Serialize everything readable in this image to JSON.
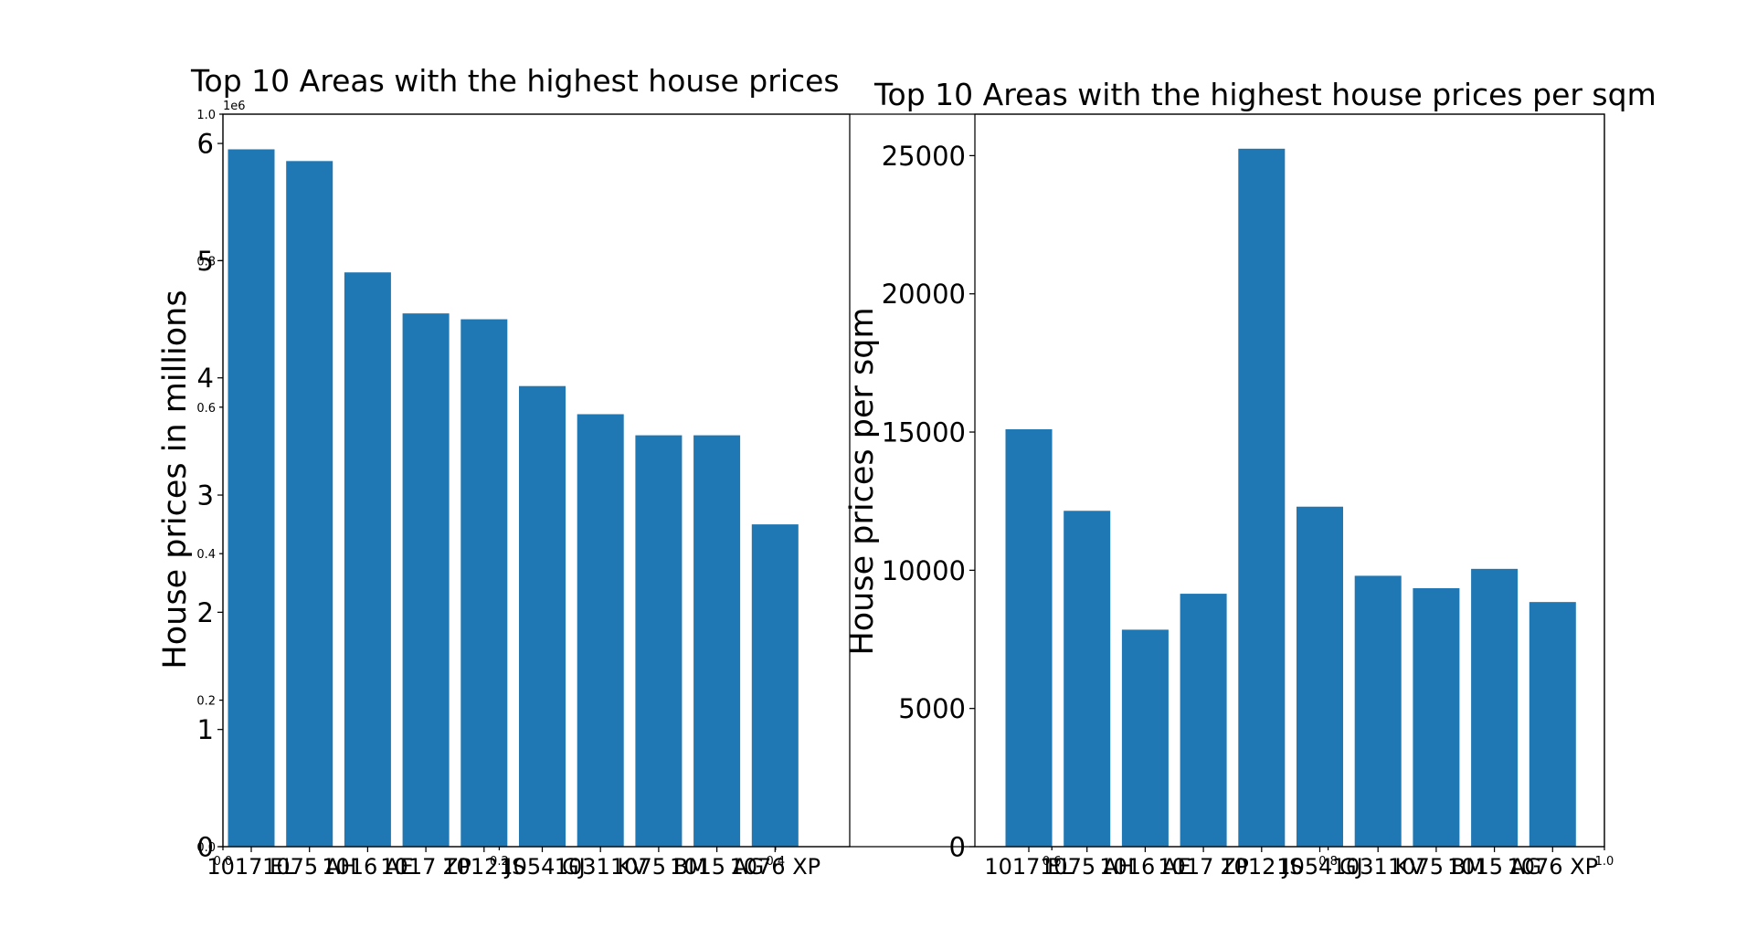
{
  "figure": {
    "background_axes": {
      "x_ticks": [
        "0.0",
        "0.2",
        "0.4",
        "0.6",
        "0.8",
        "1.0"
      ],
      "y_ticks": [
        "0.0",
        "0.2",
        "0.4",
        "0.6",
        "0.8",
        "1.0"
      ]
    }
  },
  "chart_data": [
    {
      "type": "bar",
      "title": "Top 10 Areas with the highest house prices",
      "xlabel": "",
      "ylabel": "House prices in millions",
      "offset_text": "1e6",
      "categories": [
        "1017 EL",
        "1075 AH",
        "1016 AE",
        "1017 ZP",
        "1012 JS",
        "1054 GJ",
        "1031 KV",
        "1075 BM",
        "1015 AG",
        "1076 XP"
      ],
      "values": [
        5950000,
        5850000,
        4900000,
        4550000,
        4500000,
        3930000,
        3690000,
        3510000,
        3510000,
        2750000
      ],
      "ylim": [
        0,
        6250000
      ],
      "yticks": [
        0,
        1000000,
        2000000,
        3000000,
        4000000,
        5000000,
        6000000
      ],
      "ytick_labels": [
        "0",
        "1",
        "2",
        "3",
        "4",
        "5",
        "6"
      ],
      "color": "#1f77b4",
      "grid": false
    },
    {
      "type": "bar",
      "title": "Top 10 Areas with the highest house prices per sqm",
      "xlabel": "",
      "ylabel": "House prices per sqm",
      "categories": [
        "1017 EL",
        "1075 AH",
        "1016 AE",
        "1017 ZP",
        "1012 JS",
        "1054 GJ",
        "1031 KV",
        "1075 BM",
        "1015 AG",
        "1076 XP"
      ],
      "values": [
        15100,
        12150,
        7850,
        9150,
        25250,
        12300,
        9800,
        9350,
        10050,
        8850
      ],
      "ylim": [
        0,
        26500
      ],
      "yticks": [
        0,
        5000,
        10000,
        15000,
        20000,
        25000
      ],
      "ytick_labels": [
        "0",
        "5000",
        "10000",
        "15000",
        "20000",
        "25000"
      ],
      "color": "#1f77b4",
      "grid": false
    }
  ]
}
